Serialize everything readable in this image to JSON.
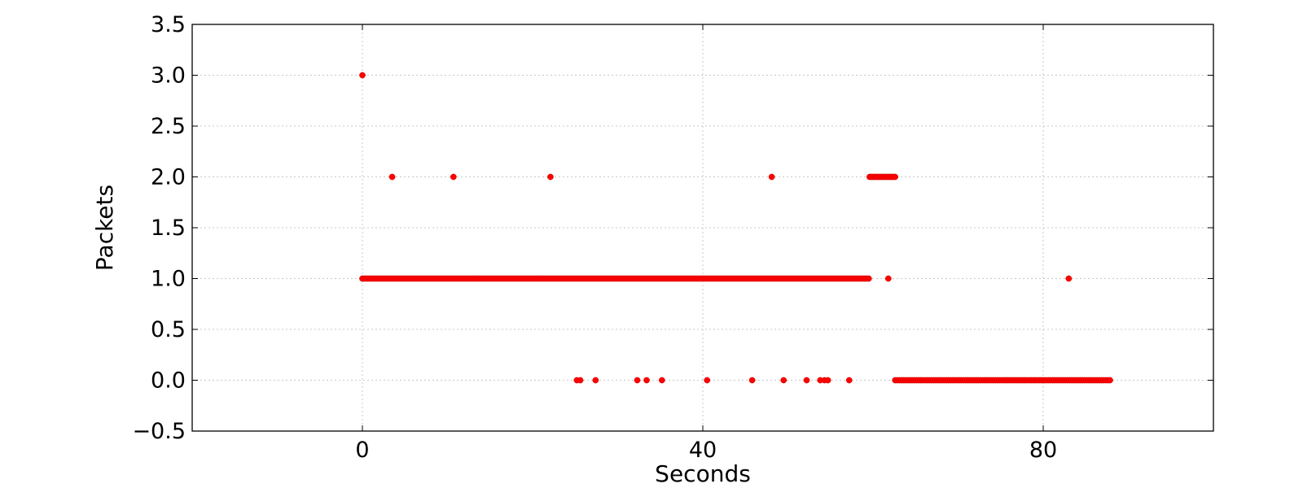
{
  "chart_data": {
    "type": "scatter",
    "title": "",
    "xlabel": "Seconds",
    "ylabel": "Packets",
    "xlim": [
      -20,
      100
    ],
    "ylim": [
      -0.5,
      3.5
    ],
    "xticks": [
      "0",
      "40",
      "80"
    ],
    "xtick_values": [
      0,
      40,
      80
    ],
    "yticks": [
      "−0.5",
      "0.0",
      "0.5",
      "1.0",
      "1.5",
      "2.0",
      "2.5",
      "3.0",
      "3.5"
    ],
    "ytick_values": [
      -0.5,
      0.0,
      0.5,
      1.0,
      1.5,
      2.0,
      2.5,
      3.0,
      3.5
    ],
    "grid": true,
    "marker_color": "#ff0000",
    "series": [
      {
        "points": [
          [
            0.0,
            3
          ],
          [
            3.5,
            2
          ],
          [
            10.7,
            2
          ],
          [
            22.1,
            2
          ],
          [
            48.1,
            2
          ],
          [
            59.6,
            2
          ],
          [
            59.8,
            2
          ],
          [
            60.0,
            2
          ],
          [
            60.2,
            2
          ],
          [
            60.4,
            2
          ],
          [
            60.6,
            2
          ],
          [
            60.8,
            2
          ],
          [
            61.0,
            2
          ],
          [
            61.2,
            2
          ],
          [
            61.4,
            2
          ],
          [
            61.6,
            2
          ],
          [
            61.8,
            2
          ],
          [
            62.0,
            2
          ],
          [
            62.2,
            2
          ],
          [
            62.4,
            2
          ],
          [
            62.6,
            2
          ],
          [
            61.8,
            1
          ],
          [
            83.0,
            1
          ],
          [
            25.2,
            0
          ],
          [
            25.6,
            0
          ],
          [
            27.4,
            0
          ],
          [
            32.3,
            0
          ],
          [
            33.4,
            0
          ],
          [
            35.2,
            0
          ],
          [
            40.5,
            0
          ],
          [
            45.8,
            0
          ],
          [
            49.5,
            0
          ],
          [
            52.2,
            0
          ],
          [
            53.8,
            0
          ],
          [
            54.3,
            0
          ],
          [
            54.7,
            0
          ],
          [
            57.2,
            0
          ]
        ],
        "dense_runs": [
          {
            "from": 0.0,
            "to": 59.5,
            "step": 0.25,
            "y": 1
          },
          {
            "from": 62.6,
            "to": 88.0,
            "step": 0.25,
            "y": 0
          }
        ]
      }
    ]
  }
}
